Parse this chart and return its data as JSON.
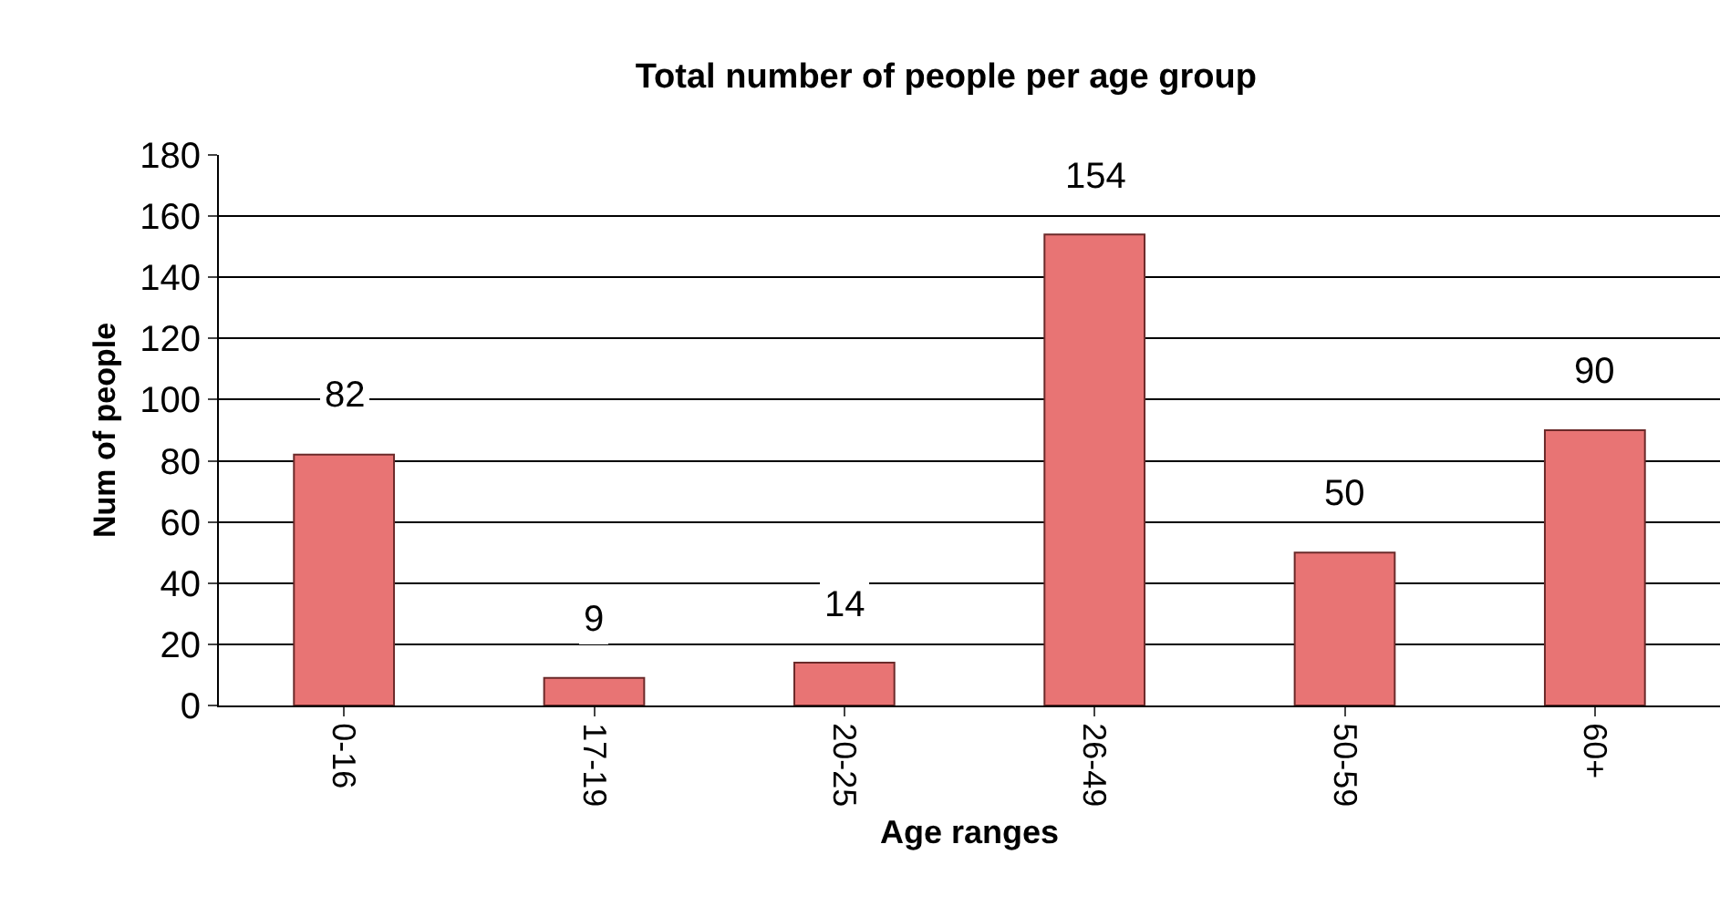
{
  "chart_data": {
    "type": "bar",
    "title": "Total number of people per age group",
    "xlabel": "Age ranges",
    "ylabel": "Num of people",
    "categories": [
      "0-16",
      "17-19",
      "20-25",
      "26-49",
      "50-59",
      "60+"
    ],
    "values": [
      82,
      9,
      14,
      154,
      50,
      90
    ],
    "color": "#e87474",
    "ylim": [
      0,
      180
    ],
    "yticks": [
      0,
      20,
      40,
      60,
      80,
      100,
      120,
      140,
      160,
      180
    ],
    "grid": "y",
    "data_labels": true,
    "legend": false
  }
}
